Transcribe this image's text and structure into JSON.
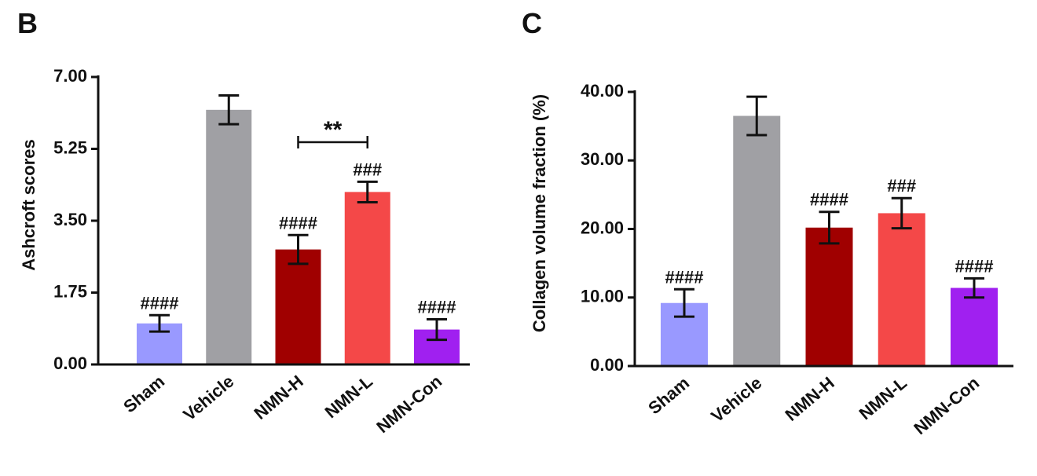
{
  "chart_data": [
    {
      "type": "bar",
      "panel": "B",
      "ylabel": "Ashcroft scores",
      "categories": [
        "Sham",
        "Vehicle",
        "NMN-H",
        "NMN-L",
        "NMN-Con"
      ],
      "values": [
        1.0,
        6.2,
        2.8,
        4.2,
        0.85
      ],
      "errors": [
        0.2,
        0.35,
        0.35,
        0.25,
        0.25
      ],
      "colors": [
        "#9999ff",
        "#a0a0a4",
        "#a00000",
        "#f44848",
        "#a020f0"
      ],
      "significance": [
        "####",
        null,
        "####",
        "###",
        "####"
      ],
      "bracket": {
        "label": "**",
        "categories": [
          "NMN-H",
          "NMN-L"
        ]
      },
      "ylim": [
        0,
        7
      ],
      "yticks": [
        {
          "value": 0,
          "label": "0.00"
        },
        {
          "value": 1.75,
          "label": "1.75"
        },
        {
          "value": 3.5,
          "label": "3.50"
        },
        {
          "value": 5.25,
          "label": "5.25"
        },
        {
          "value": 7,
          "label": "7.00"
        }
      ]
    },
    {
      "type": "bar",
      "panel": "C",
      "ylabel": "Collagen volume fraction (%)",
      "categories": [
        "Sham",
        "Vehicle",
        "NMN-H",
        "NMN-L",
        "NMN-Con"
      ],
      "values": [
        9.2,
        36.5,
        20.2,
        22.3,
        11.4
      ],
      "errors": [
        2.0,
        2.8,
        2.3,
        2.2,
        1.4
      ],
      "colors": [
        "#9999ff",
        "#a0a0a4",
        "#a00000",
        "#f44848",
        "#a020f0"
      ],
      "significance": [
        "####",
        null,
        "####",
        "###",
        "####"
      ],
      "ylim": [
        0,
        40
      ],
      "yticks": [
        {
          "value": 0,
          "label": "0.00"
        },
        {
          "value": 10,
          "label": "10.00"
        },
        {
          "value": 20,
          "label": "20.00"
        },
        {
          "value": 30,
          "label": "30.00"
        },
        {
          "value": 40,
          "label": "40.00"
        }
      ]
    }
  ]
}
